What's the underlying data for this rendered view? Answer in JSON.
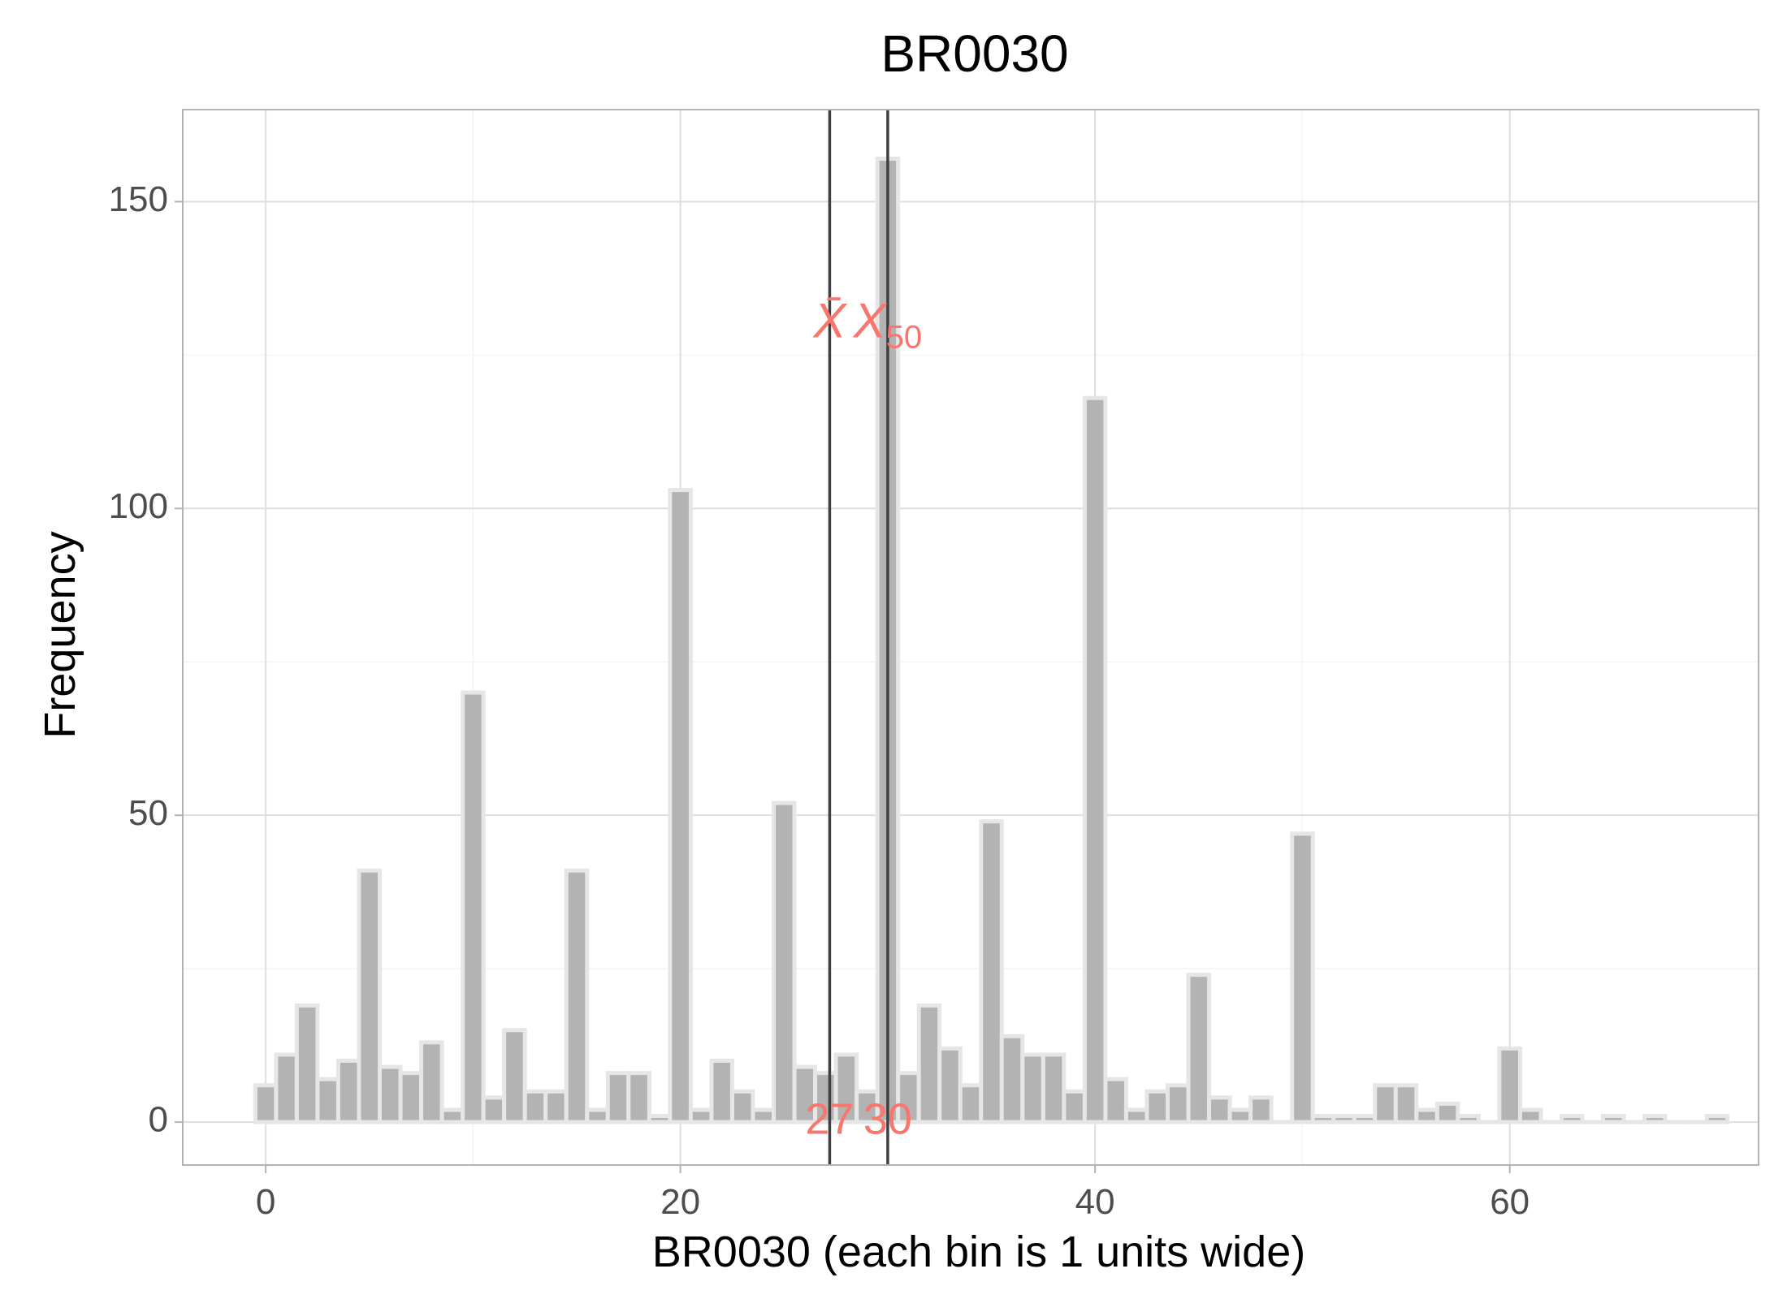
{
  "chart_data": {
    "type": "bar",
    "title": "BR0030",
    "xlabel": "BR0030 (each bin is 1 units wide)",
    "ylabel": "Frequency",
    "xlim": [
      -4,
      72
    ],
    "ylim": [
      -7,
      165
    ],
    "x_ticks": [
      0,
      20,
      40,
      60
    ],
    "y_ticks": [
      0,
      50,
      100,
      150
    ],
    "bin_width": 1,
    "grid": true,
    "bar_color": "#b3b3b3",
    "bar_edge_color": "#e6e6e6",
    "bins": [
      {
        "x": 0,
        "count": 6
      },
      {
        "x": 1,
        "count": 11
      },
      {
        "x": 2,
        "count": 19
      },
      {
        "x": 3,
        "count": 7
      },
      {
        "x": 4,
        "count": 10
      },
      {
        "x": 5,
        "count": 41
      },
      {
        "x": 6,
        "count": 9
      },
      {
        "x": 7,
        "count": 8
      },
      {
        "x": 8,
        "count": 13
      },
      {
        "x": 9,
        "count": 2
      },
      {
        "x": 10,
        "count": 70
      },
      {
        "x": 11,
        "count": 4
      },
      {
        "x": 12,
        "count": 15
      },
      {
        "x": 13,
        "count": 5
      },
      {
        "x": 14,
        "count": 5
      },
      {
        "x": 15,
        "count": 41
      },
      {
        "x": 16,
        "count": 2
      },
      {
        "x": 17,
        "count": 8
      },
      {
        "x": 18,
        "count": 8
      },
      {
        "x": 19,
        "count": 1
      },
      {
        "x": 20,
        "count": 103
      },
      {
        "x": 21,
        "count": 2
      },
      {
        "x": 22,
        "count": 10
      },
      {
        "x": 23,
        "count": 5
      },
      {
        "x": 24,
        "count": 2
      },
      {
        "x": 25,
        "count": 52
      },
      {
        "x": 26,
        "count": 9
      },
      {
        "x": 27,
        "count": 8
      },
      {
        "x": 28,
        "count": 11
      },
      {
        "x": 29,
        "count": 5
      },
      {
        "x": 30,
        "count": 157
      },
      {
        "x": 31,
        "count": 8
      },
      {
        "x": 32,
        "count": 19
      },
      {
        "x": 33,
        "count": 12
      },
      {
        "x": 34,
        "count": 6
      },
      {
        "x": 35,
        "count": 49
      },
      {
        "x": 36,
        "count": 14
      },
      {
        "x": 37,
        "count": 11
      },
      {
        "x": 38,
        "count": 11
      },
      {
        "x": 39,
        "count": 5
      },
      {
        "x": 40,
        "count": 118
      },
      {
        "x": 41,
        "count": 7
      },
      {
        "x": 42,
        "count": 2
      },
      {
        "x": 43,
        "count": 5
      },
      {
        "x": 44,
        "count": 6
      },
      {
        "x": 45,
        "count": 24
      },
      {
        "x": 46,
        "count": 4
      },
      {
        "x": 47,
        "count": 2
      },
      {
        "x": 48,
        "count": 4
      },
      {
        "x": 49,
        "count": 0
      },
      {
        "x": 50,
        "count": 47
      },
      {
        "x": 51,
        "count": 1
      },
      {
        "x": 52,
        "count": 1
      },
      {
        "x": 53,
        "count": 1
      },
      {
        "x": 54,
        "count": 6
      },
      {
        "x": 55,
        "count": 6
      },
      {
        "x": 56,
        "count": 2
      },
      {
        "x": 57,
        "count": 3
      },
      {
        "x": 58,
        "count": 1
      },
      {
        "x": 59,
        "count": 0
      },
      {
        "x": 60,
        "count": 12
      },
      {
        "x": 61,
        "count": 2
      },
      {
        "x": 62,
        "count": 0
      },
      {
        "x": 63,
        "count": 1
      },
      {
        "x": 64,
        "count": 0
      },
      {
        "x": 65,
        "count": 1
      },
      {
        "x": 66,
        "count": 0
      },
      {
        "x": 67,
        "count": 1
      },
      {
        "x": 68,
        "count": 0
      },
      {
        "x": 69,
        "count": 0
      },
      {
        "x": 70,
        "count": 1
      }
    ],
    "reference_lines": [
      {
        "symbol": "X̄",
        "value": 27.2,
        "label_value": "27"
      },
      {
        "symbol": "X",
        "subscript": "50",
        "value": 30,
        "label_value": "30"
      }
    ],
    "annotation_color": "#f8766d",
    "line_color": "#404040"
  }
}
